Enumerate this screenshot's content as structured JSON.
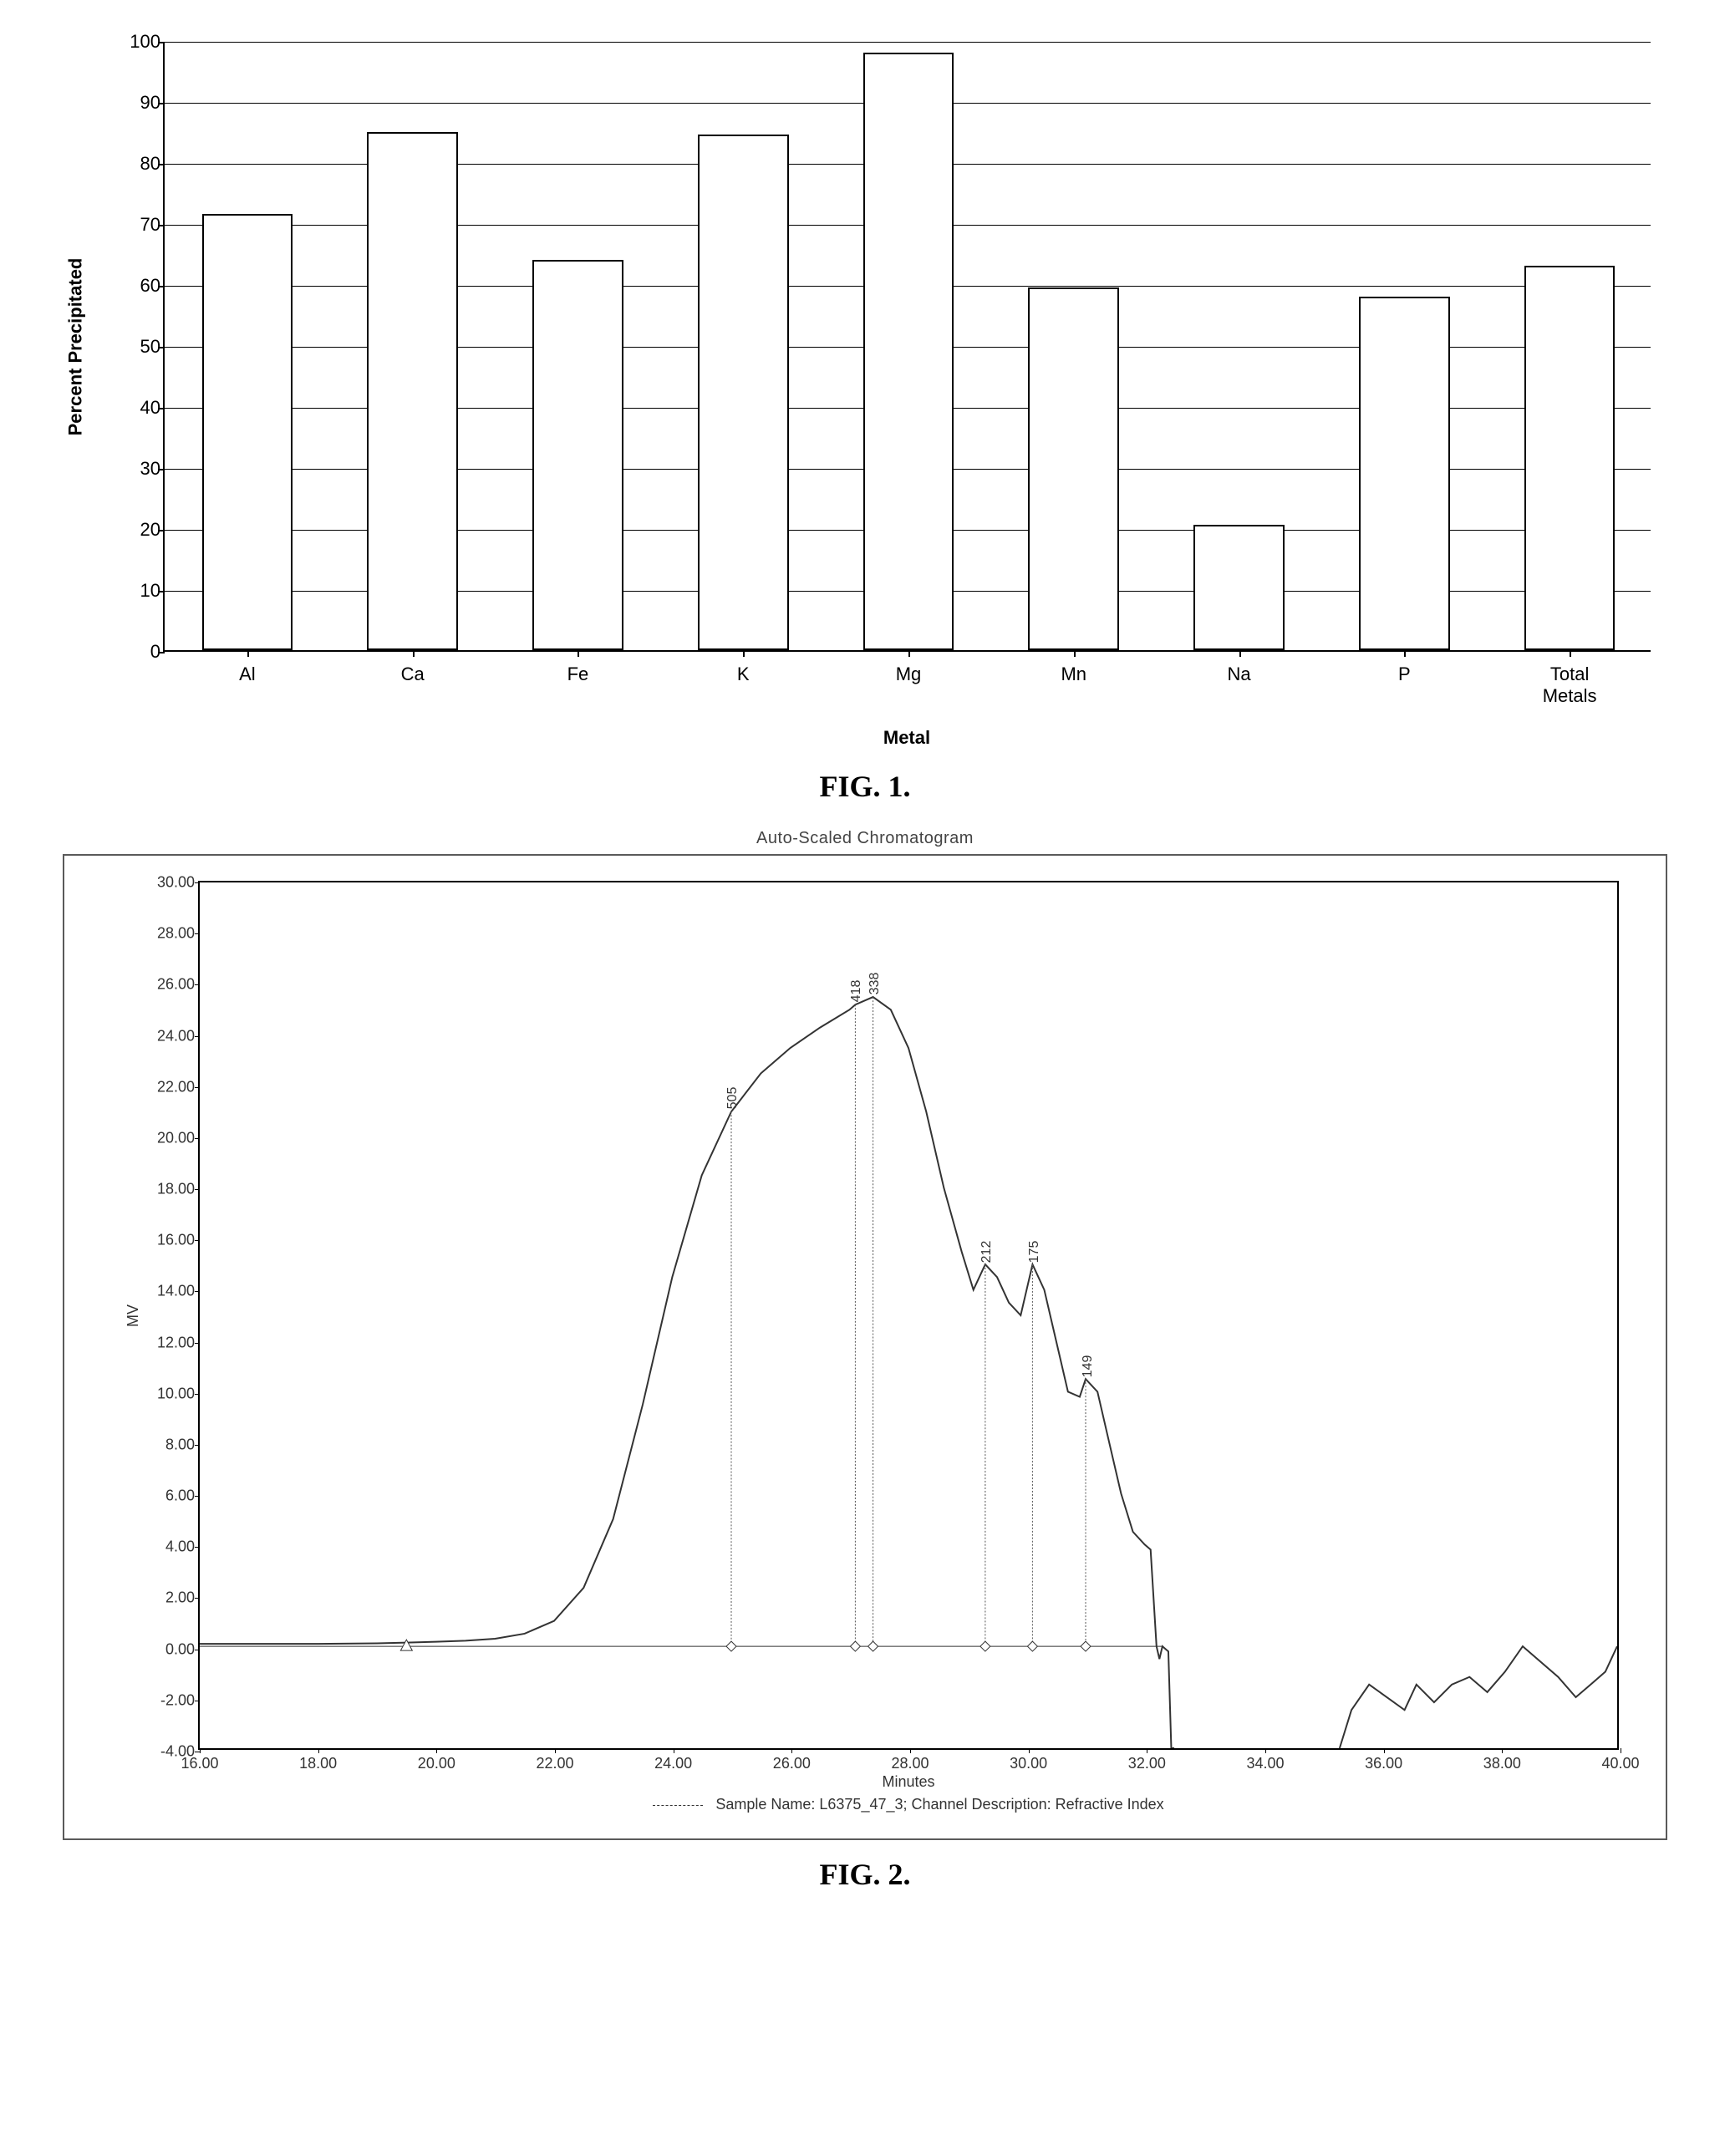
{
  "fig1": {
    "type": "bar",
    "caption": "FIG. 1.",
    "yaxis_label": "Percent Precipitated",
    "xaxis_label": "Metal",
    "ylim": [
      0,
      100
    ],
    "ytick_step": 10,
    "bar_fill": "#ffffff",
    "bar_border": "#000000",
    "grid_color": "#000000",
    "bar_width_ratio": 0.55,
    "label_fontsize": 22,
    "tick_fontsize": 22,
    "categories": [
      "Al",
      "Ca",
      "Fe",
      "K",
      "Mg",
      "Mn",
      "Na",
      "P",
      "Total Metals"
    ],
    "values": [
      71.5,
      85,
      64,
      84.5,
      98,
      59.5,
      20.5,
      58,
      63
    ]
  },
  "fig2": {
    "type": "line",
    "caption": "FIG. 2.",
    "title": "Auto-Scaled Chromatogram",
    "yaxis_label": "MV",
    "xaxis_label": "Minutes",
    "legend_text": "Sample Name: L6375_47_3;  Channel Description: Refractive Index",
    "xlim": [
      16,
      40
    ],
    "ylim": [
      -4,
      30
    ],
    "xtick_step": 2,
    "ytick_step": 2,
    "line_color": "#333333",
    "line_width": 2,
    "label_fontsize": 18,
    "tick_fontsize": 18,
    "peaks": [
      {
        "x": 25.0,
        "label": "505"
      },
      {
        "x": 27.1,
        "label": "418"
      },
      {
        "x": 27.4,
        "label": "338"
      },
      {
        "x": 29.3,
        "label": "212"
      },
      {
        "x": 30.1,
        "label": "175"
      },
      {
        "x": 31.0,
        "label": "149"
      }
    ],
    "markers_y": 0,
    "triangle_marker_x": 19.5,
    "curve": [
      [
        16.0,
        0.1
      ],
      [
        17.0,
        0.1
      ],
      [
        18.0,
        0.1
      ],
      [
        19.0,
        0.12
      ],
      [
        19.5,
        0.15
      ],
      [
        20.0,
        0.18
      ],
      [
        20.5,
        0.22
      ],
      [
        21.0,
        0.3
      ],
      [
        21.5,
        0.5
      ],
      [
        22.0,
        1.0
      ],
      [
        22.5,
        2.3
      ],
      [
        23.0,
        5.0
      ],
      [
        23.5,
        9.5
      ],
      [
        24.0,
        14.5
      ],
      [
        24.5,
        18.5
      ],
      [
        25.0,
        21.0
      ],
      [
        25.5,
        22.5
      ],
      [
        26.0,
        23.5
      ],
      [
        26.5,
        24.3
      ],
      [
        27.0,
        25.0
      ],
      [
        27.1,
        25.2
      ],
      [
        27.4,
        25.5
      ],
      [
        27.7,
        25.0
      ],
      [
        28.0,
        23.5
      ],
      [
        28.3,
        21.0
      ],
      [
        28.6,
        18.0
      ],
      [
        28.9,
        15.5
      ],
      [
        29.1,
        14.0
      ],
      [
        29.3,
        15.0
      ],
      [
        29.5,
        14.5
      ],
      [
        29.7,
        13.5
      ],
      [
        29.9,
        13.0
      ],
      [
        30.1,
        15.0
      ],
      [
        30.3,
        14.0
      ],
      [
        30.5,
        12.0
      ],
      [
        30.7,
        10.0
      ],
      [
        30.9,
        9.8
      ],
      [
        31.0,
        10.5
      ],
      [
        31.2,
        10.0
      ],
      [
        31.4,
        8.0
      ],
      [
        31.6,
        6.0
      ],
      [
        31.8,
        4.5
      ],
      [
        32.0,
        4.0
      ],
      [
        32.1,
        3.8
      ],
      [
        32.2,
        0.0
      ],
      [
        32.25,
        -0.5
      ],
      [
        32.3,
        0.0
      ],
      [
        32.4,
        -0.2
      ],
      [
        32.45,
        -4.0
      ],
      [
        32.5,
        -4.0
      ],
      [
        35.3,
        -4.0
      ],
      [
        35.5,
        -2.5
      ],
      [
        35.8,
        -1.5
      ],
      [
        36.1,
        -2.0
      ],
      [
        36.4,
        -2.5
      ],
      [
        36.6,
        -1.5
      ],
      [
        36.9,
        -2.2
      ],
      [
        37.2,
        -1.5
      ],
      [
        37.5,
        -1.2
      ],
      [
        37.8,
        -1.8
      ],
      [
        38.1,
        -1.0
      ],
      [
        38.4,
        0.0
      ],
      [
        38.7,
        -0.6
      ],
      [
        39.0,
        -1.2
      ],
      [
        39.3,
        -2.0
      ],
      [
        39.5,
        -1.6
      ],
      [
        39.8,
        -1.0
      ],
      [
        40.0,
        0.0
      ]
    ]
  }
}
